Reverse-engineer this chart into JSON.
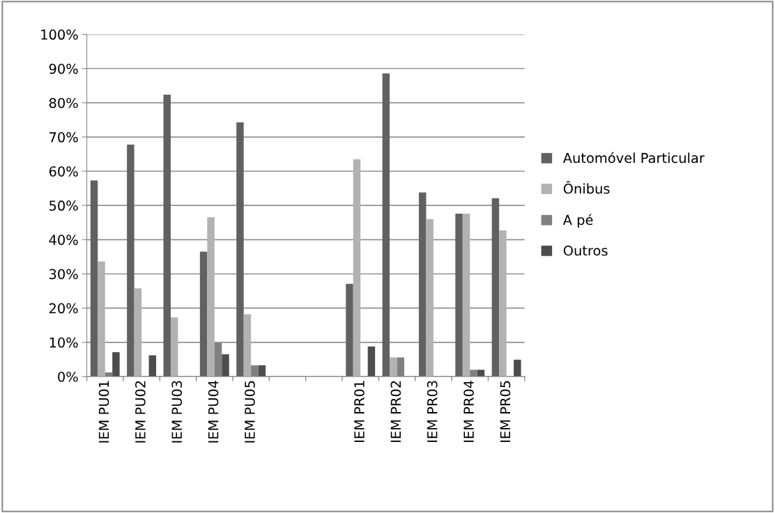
{
  "chart_data": {
    "type": "bar",
    "categories": [
      "IEM PU01",
      "IEM PU02",
      "IEM PU03",
      "IEM PU04",
      "IEM PU05",
      null,
      null,
      "IEM PR01",
      "IEM PR02",
      "IEM PR03",
      "IEM PR04",
      "IEM PR05"
    ],
    "series": [
      {
        "name": "Automóvel Particular",
        "color": "#616161",
        "values": [
          57.3,
          67.8,
          82.4,
          36.5,
          74.3,
          null,
          null,
          27.1,
          88.6,
          53.8,
          47.6,
          52.1
        ]
      },
      {
        "name": "Ônibus",
        "color": "#b2b2b2",
        "values": [
          33.6,
          25.8,
          17.3,
          46.6,
          18.2,
          null,
          null,
          63.5,
          5.6,
          46.0,
          47.6,
          42.7
        ]
      },
      {
        "name": "A pé",
        "color": "#808080",
        "values": [
          1.2,
          0,
          0,
          9.9,
          3.3,
          null,
          null,
          0,
          5.6,
          0,
          2.0,
          0
        ]
      },
      {
        "name": "Outros",
        "color": "#4d4d4d",
        "values": [
          7.1,
          6.2,
          0,
          6.5,
          3.3,
          null,
          null,
          8.8,
          0,
          0,
          2.0,
          4.9
        ]
      }
    ],
    "ylim": [
      0,
      100
    ],
    "yticks": [
      {
        "value": 0,
        "label": "0%"
      },
      {
        "value": 10,
        "label": "10%"
      },
      {
        "value": 20,
        "label": "20%"
      },
      {
        "value": 30,
        "label": "30%"
      },
      {
        "value": 40,
        "label": "40%"
      },
      {
        "value": 50,
        "label": "50%"
      },
      {
        "value": 60,
        "label": "60%"
      },
      {
        "value": 70,
        "label": "70%"
      },
      {
        "value": 80,
        "label": "80%"
      },
      {
        "value": 90,
        "label": "90%"
      },
      {
        "value": 100,
        "label": "100%"
      }
    ],
    "grid": "y",
    "legend": "right"
  }
}
